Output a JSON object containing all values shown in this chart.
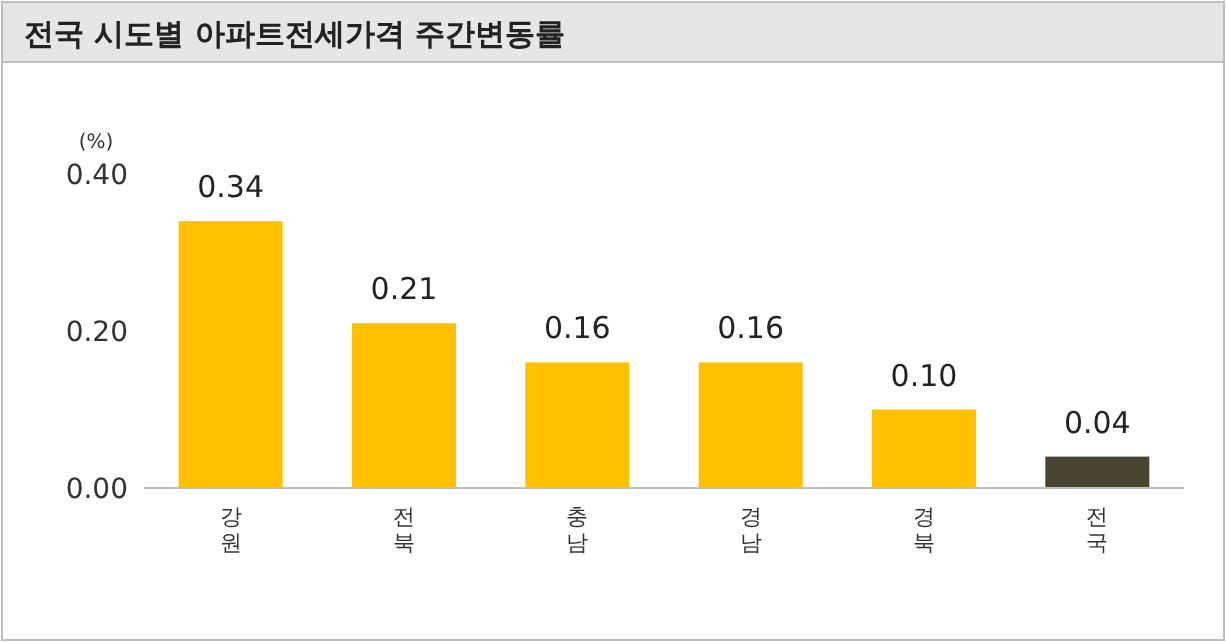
{
  "chart_data": {
    "type": "bar",
    "title": "전국 시도별 아파트전세가격 주간변동률",
    "ylabel": "(%)",
    "categories": [
      "강원",
      "전북",
      "충남",
      "경남",
      "경북",
      "전국"
    ],
    "values": [
      0.34,
      0.21,
      0.16,
      0.16,
      0.1,
      0.04
    ],
    "colors": [
      "#ffc000",
      "#ffc000",
      "#ffc000",
      "#ffc000",
      "#ffc000",
      "#4a4532"
    ],
    "value_labels": [
      "0.34",
      "0.21",
      "0.16",
      "0.16",
      "0.10",
      "0.04"
    ],
    "ylim": [
      0,
      0.4
    ],
    "yticks": [
      {
        "value": 0,
        "label": "0.00"
      },
      {
        "value": 0.2,
        "label": "0.20"
      },
      {
        "value": 0.4,
        "label": "0.40"
      }
    ],
    "grid": false
  }
}
